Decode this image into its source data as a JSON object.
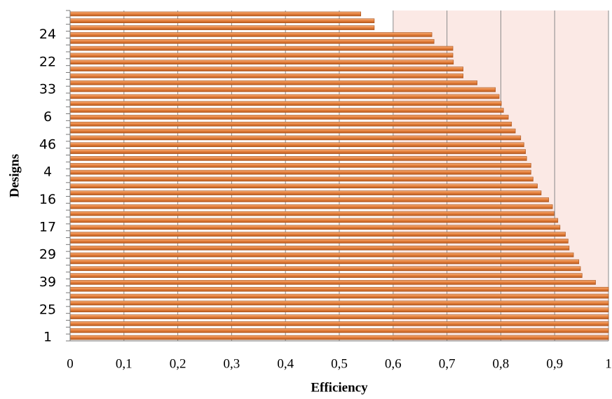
{
  "chart_data": {
    "type": "barh",
    "x_label": "Efficiency",
    "y_label": "Designs",
    "categories": [
      "1",
      null,
      null,
      null,
      "25",
      null,
      null,
      null,
      "39",
      null,
      null,
      null,
      "29",
      null,
      null,
      null,
      "17",
      null,
      null,
      null,
      "16",
      null,
      null,
      null,
      "4",
      null,
      null,
      null,
      "46",
      null,
      null,
      null,
      "6",
      null,
      null,
      null,
      "33",
      null,
      null,
      null,
      "22",
      null,
      null,
      null,
      "24",
      null,
      null,
      null
    ],
    "values": [
      1,
      1,
      1,
      1,
      1,
      1,
      1,
      1,
      0.976,
      0.951,
      0.948,
      0.945,
      0.935,
      0.927,
      0.925,
      0.92,
      0.91,
      0.906,
      0.899,
      0.896,
      0.889,
      0.875,
      0.868,
      0.86,
      0.856,
      0.856,
      0.848,
      0.846,
      0.843,
      0.837,
      0.827,
      0.82,
      0.814,
      0.805,
      0.801,
      0.797,
      0.79,
      0.756,
      0.73,
      0.73,
      0.712,
      0.711,
      0.711,
      0.676,
      0.672,
      0.565,
      0.565,
      0.54
    ],
    "color": "#e47f3c",
    "xlim": [
      0,
      1
    ],
    "xticks": [
      0,
      {
        "value": 0.1,
        "label": "0,1"
      },
      {
        "value": 0.2,
        "label": "0,2"
      },
      {
        "value": 0.3,
        "label": "0,3"
      },
      {
        "value": 0.4,
        "label": "0,4"
      },
      {
        "value": 0.5,
        "label": "0,5"
      },
      {
        "value": 0.6,
        "label": "0,6"
      },
      {
        "value": 0.7,
        "label": "0,7"
      },
      {
        "value": 0.8,
        "label": "0,8"
      },
      {
        "value": 0.9,
        "label": "0,9"
      },
      1
    ],
    "grid": true,
    "shaded_xrange": [
      0.6,
      1
    ],
    "shade_color": "#fbe9e5"
  }
}
